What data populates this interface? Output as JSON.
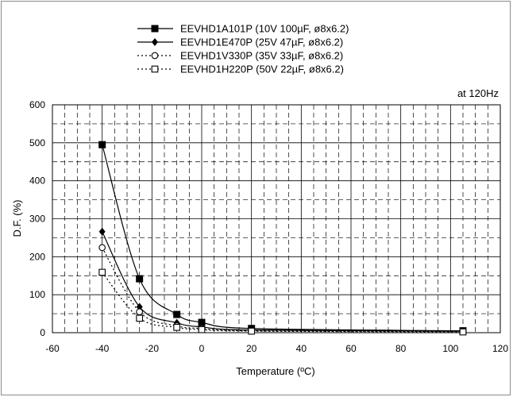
{
  "chart_data": {
    "type": "line",
    "annotation": "at 120Hz",
    "xlabel": "Temperature (ºC)",
    "ylabel": "D.F. (%)",
    "xlim": [
      -60,
      120
    ],
    "ylim": [
      0,
      600
    ],
    "xticks": [
      -60,
      -40,
      -20,
      0,
      20,
      40,
      60,
      80,
      100,
      120
    ],
    "yticks": [
      0,
      100,
      200,
      300,
      400,
      500,
      600
    ],
    "grid": "major solid, minor dashed",
    "legend_position": "top-center",
    "x": [
      -40,
      -25,
      -10,
      0,
      20,
      105
    ],
    "series": [
      {
        "name": "EEVHD1A101P (10V 100µF, ø8x6.2)",
        "marker": "filled-square",
        "line": "solid",
        "values": [
          495,
          142,
          48,
          27,
          11,
          5
        ]
      },
      {
        "name": "EEVHD1E470P (25V 47µF, ø8x6.2)",
        "marker": "filled-diamond",
        "line": "solid",
        "values": [
          266,
          68,
          26,
          15,
          7,
          4
        ]
      },
      {
        "name": "EEVHD1V330P (35V 33µF, ø8x6.2)",
        "marker": "open-circle",
        "line": "dotted",
        "values": [
          224,
          55,
          18,
          11,
          5,
          3
        ]
      },
      {
        "name": "EEVHD1H220P (50V 22µF, ø8x6.2)",
        "marker": "open-square",
        "line": "dotted",
        "values": [
          159,
          38,
          14,
          8,
          4,
          2
        ]
      }
    ]
  }
}
